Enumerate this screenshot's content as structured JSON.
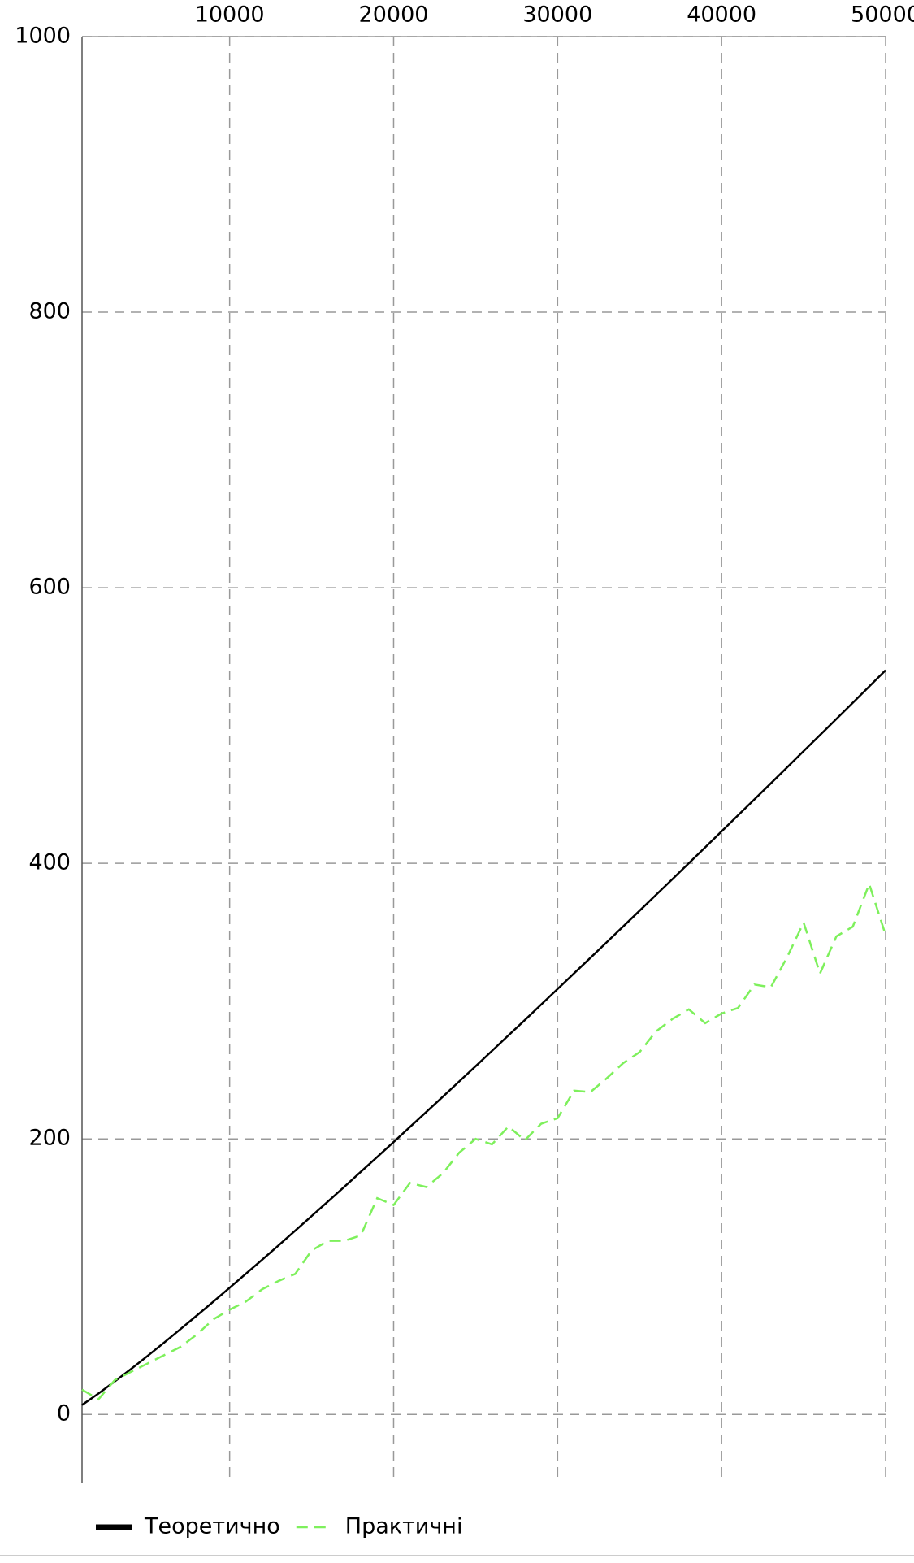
{
  "chart_data": {
    "type": "line",
    "x": [
      1000,
      2000,
      3000,
      4000,
      5000,
      6000,
      7000,
      8000,
      9000,
      10000,
      11000,
      12000,
      13000,
      14000,
      15000,
      16000,
      17000,
      18000,
      19000,
      20000,
      21000,
      22000,
      23000,
      24000,
      25000,
      26000,
      27000,
      28000,
      29000,
      30000,
      31000,
      32000,
      33000,
      34000,
      35000,
      36000,
      37000,
      38000,
      39000,
      40000,
      41000,
      42000,
      43000,
      44000,
      45000,
      46000,
      47000,
      48000,
      49000,
      50000
    ],
    "series": [
      {
        "name": "Теоретично",
        "color": "#000000",
        "dash": false,
        "values": [
          6.9,
          15.2,
          24.0,
          33.1,
          42.5,
          52.1,
          61.9,
          71.8,
          81.8,
          92.0,
          102.2,
          112.5,
          122.9,
          133.4,
          144.0,
          154.6,
          165.3,
          176.1,
          186.9,
          197.7,
          208.7,
          219.6,
          230.6,
          241.7,
          252.7,
          263.9,
          275.1,
          286.2,
          297.5,
          308.8,
          320.1,
          331.4,
          342.8,
          354.2,
          365.6,
          377.1,
          388.5,
          400.1,
          411.6,
          423.2,
          434.8,
          446.4,
          458.0,
          469.7,
          481.4,
          493.1,
          504.8,
          516.5,
          528.3,
          540.1
        ]
      },
      {
        "name": "Практичні",
        "color": "#7ef05c",
        "dash": true,
        "values": [
          18,
          11,
          25,
          31,
          37,
          43,
          49,
          58,
          69,
          76,
          82,
          91,
          97,
          102,
          119,
          126,
          126,
          130,
          157,
          152,
          168,
          165,
          175,
          190,
          200,
          196,
          209,
          199,
          211,
          215,
          235,
          234,
          244,
          255,
          263,
          278,
          287,
          294,
          284,
          291,
          295,
          312,
          310,
          332,
          357,
          320,
          347,
          354,
          385,
          348
        ]
      }
    ],
    "xlim": [
      1000,
      50000
    ],
    "xticks": [
      10000,
      20000,
      30000,
      40000,
      50000
    ],
    "ylim": [
      -50,
      1000
    ],
    "yticks": [
      0,
      200,
      400,
      600,
      800,
      1000
    ],
    "grid": true,
    "legend": "bottom-left"
  }
}
